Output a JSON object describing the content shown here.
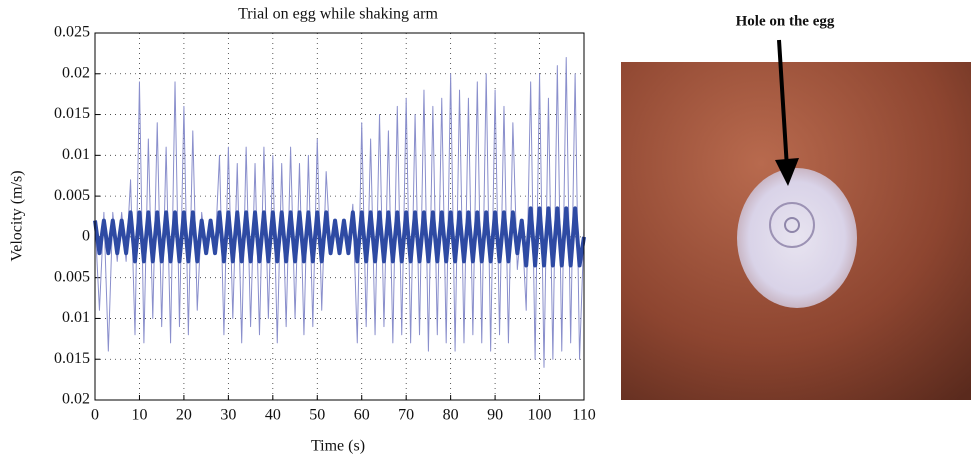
{
  "chart_data": {
    "type": "line",
    "title": "Trial on egg while shaking arm",
    "x_label": "Time (s)",
    "y_label": "Velocity (m/s)",
    "x": [
      0,
      1,
      2,
      3,
      4,
      5,
      6,
      7,
      8,
      9,
      10,
      11,
      12,
      13,
      14,
      15,
      16,
      17,
      18,
      19,
      20,
      21,
      22,
      23,
      24,
      25,
      26,
      27,
      28,
      29,
      30,
      31,
      32,
      33,
      34,
      35,
      36,
      37,
      38,
      39,
      40,
      41,
      42,
      43,
      44,
      45,
      46,
      47,
      48,
      49,
      50,
      51,
      52,
      53,
      54,
      55,
      56,
      57,
      58,
      59,
      60,
      61,
      62,
      63,
      64,
      65,
      66,
      67,
      68,
      69,
      70,
      71,
      72,
      73,
      74,
      75,
      76,
      77,
      78,
      79,
      80,
      81,
      82,
      83,
      84,
      85,
      86,
      87,
      88,
      89,
      90,
      91,
      92,
      93,
      94,
      95,
      96,
      97,
      98,
      99,
      100,
      101,
      102,
      103,
      104,
      105,
      106,
      107,
      108,
      109,
      110
    ],
    "series": [
      {
        "color": "#8a8fcc",
        "values": [
          0.002,
          -0.009,
          0.003,
          -0.014,
          0.003,
          -0.003,
          0.003,
          -0.003,
          0.007,
          -0.012,
          0.019,
          -0.013,
          0.012,
          -0.01,
          0.014,
          -0.011,
          0.011,
          -0.013,
          0.019,
          -0.011,
          0.016,
          -0.012,
          0.013,
          -0.009,
          0.003,
          -0.002,
          0.002,
          -0.002,
          0.01,
          -0.012,
          0.011,
          -0.01,
          0.009,
          -0.013,
          0.011,
          -0.011,
          0.009,
          -0.012,
          0.011,
          -0.01,
          0.01,
          -0.013,
          0.009,
          -0.011,
          0.011,
          -0.01,
          0.009,
          -0.012,
          0.01,
          -0.011,
          0.012,
          -0.009,
          0.008,
          -0.002,
          0.002,
          -0.002,
          0.002,
          -0.002,
          0.004,
          -0.013,
          0.014,
          -0.011,
          0.012,
          -0.012,
          0.015,
          -0.011,
          0.013,
          -0.013,
          0.016,
          -0.012,
          0.017,
          -0.013,
          0.015,
          -0.012,
          0.018,
          -0.014,
          0.016,
          -0.012,
          0.017,
          -0.013,
          0.02,
          -0.014,
          0.018,
          -0.013,
          0.017,
          -0.012,
          0.019,
          -0.013,
          0.02,
          -0.014,
          0.018,
          -0.012,
          0.016,
          -0.013,
          0.014,
          -0.004,
          0.002,
          -0.009,
          0.019,
          -0.015,
          0.02,
          -0.016,
          0.017,
          -0.015,
          0.021,
          -0.014,
          0.022,
          -0.013,
          0.02,
          -0.015,
          0.001
        ]
      },
      {
        "color": "#2e4aa3",
        "values": [
          0.002,
          -0.002,
          0.002,
          -0.002,
          0.002,
          -0.002,
          0.002,
          -0.002,
          0.003,
          -0.003,
          0.003,
          -0.003,
          0.003,
          -0.003,
          0.003,
          -0.003,
          0.003,
          -0.003,
          0.003,
          -0.003,
          0.003,
          -0.003,
          0.003,
          -0.003,
          0.002,
          -0.002,
          0.002,
          -0.002,
          0.003,
          -0.003,
          0.003,
          -0.003,
          0.003,
          -0.003,
          0.003,
          -0.003,
          0.003,
          -0.003,
          0.003,
          -0.003,
          0.003,
          -0.003,
          0.003,
          -0.003,
          0.003,
          -0.003,
          0.003,
          -0.003,
          0.003,
          -0.003,
          0.003,
          -0.003,
          0.003,
          -0.002,
          0.002,
          -0.002,
          0.002,
          -0.002,
          0.003,
          -0.003,
          0.003,
          -0.003,
          0.003,
          -0.003,
          0.003,
          -0.003,
          0.003,
          -0.003,
          0.003,
          -0.003,
          0.003,
          -0.003,
          0.003,
          -0.003,
          0.003,
          -0.003,
          0.003,
          -0.003,
          0.003,
          -0.003,
          0.003,
          -0.003,
          0.003,
          -0.003,
          0.003,
          -0.003,
          0.003,
          -0.003,
          0.003,
          -0.003,
          0.003,
          -0.003,
          0.003,
          -0.003,
          0.003,
          -0.002,
          0.002,
          -0.0035,
          0.0035,
          -0.0035,
          0.0035,
          -0.0035,
          0.0035,
          -0.0035,
          0.0035,
          -0.0035,
          0.0035,
          -0.0035,
          0.0035,
          -0.0035,
          0
        ]
      }
    ],
    "xlim": [
      0,
      110
    ],
    "xticks": [
      0,
      10,
      20,
      30,
      40,
      50,
      60,
      70,
      80,
      90,
      100,
      110
    ],
    "ylim": [
      -0.02,
      0.025
    ],
    "yticks": [
      {
        "value": -0.02,
        "label": "0.02"
      },
      {
        "value": -0.015,
        "label": "0.015"
      },
      {
        "value": -0.01,
        "label": "0.01"
      },
      {
        "value": -0.005,
        "label": "0.005"
      },
      0,
      0.005,
      0.01,
      0.015,
      0.02,
      0.025
    ],
    "grid": true
  },
  "photo": {
    "annotation": "Hole on the egg"
  }
}
